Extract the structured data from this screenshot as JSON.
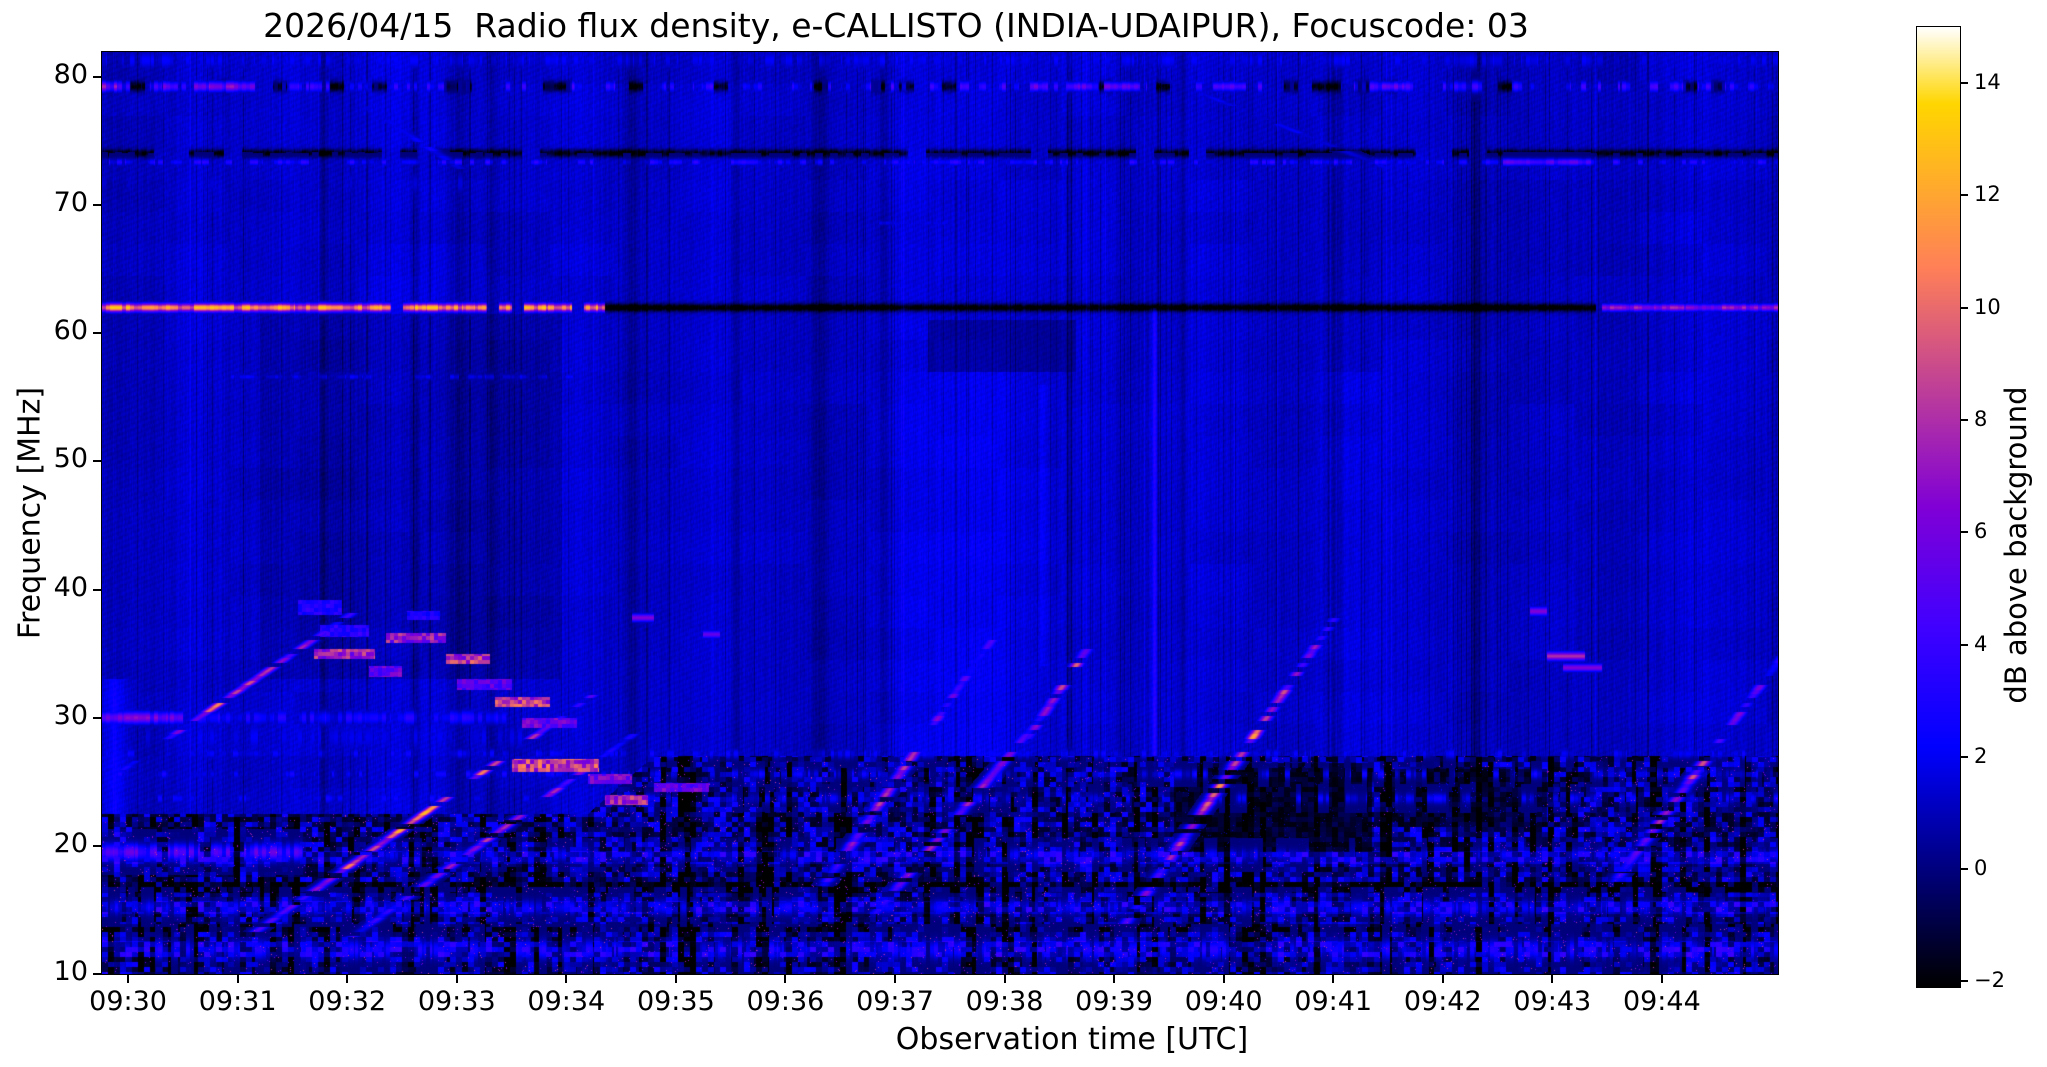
{
  "page": {
    "background": "#ffffff"
  },
  "chart_data": {
    "type": "heatmap",
    "subtype": "solar-radio-spectrogram",
    "title": "2026/04/15  Radio flux density, e-CALLISTO (INDIA-UDAIPUR), Focuscode: 03",
    "xlabel": "Observation time [UTC]",
    "ylabel": "Frequency [MHz]",
    "grid": false,
    "time_range_min": [
      -0.238,
      15.06
    ],
    "freq_range_mhz": [
      10,
      81.95
    ],
    "x_ticks": {
      "minutes": [
        0,
        1,
        2,
        3,
        4,
        5,
        6,
        7,
        8,
        9,
        10,
        11,
        12,
        13,
        14
      ],
      "labels": [
        "09:30",
        "09:31",
        "09:32",
        "09:33",
        "09:34",
        "09:35",
        "09:36",
        "09:37",
        "09:38",
        "09:39",
        "09:40",
        "09:41",
        "09:42",
        "09:43",
        "09:44"
      ]
    },
    "y_ticks": {
      "mhz": [
        80,
        70,
        60,
        50,
        40,
        30,
        20,
        10
      ],
      "labels": [
        "80",
        "70",
        "60",
        "50",
        "40",
        "30",
        "20",
        "10"
      ]
    },
    "colorbar": {
      "label": "dB above background",
      "vmin": -2.1,
      "vmax": 15.0,
      "tick_values": [
        14,
        12,
        10,
        8,
        6,
        4,
        2,
        0,
        -2
      ],
      "tick_labels": [
        "14",
        "12",
        "10",
        "8",
        "6",
        "4",
        "2",
        "0",
        "−2"
      ]
    },
    "colormap": {
      "name": "gnuplot2-like",
      "stops": [
        {
          "p": 0.0,
          "c": "#000000"
        },
        {
          "p": 0.125,
          "c": "#000080"
        },
        {
          "p": 0.25,
          "c": "#0000ff"
        },
        {
          "p": 0.375,
          "c": "#4000ff"
        },
        {
          "p": 0.5,
          "c": "#8000d6"
        },
        {
          "p": 0.625,
          "c": "#bf4096"
        },
        {
          "p": 0.75,
          "c": "#ff8057"
        },
        {
          "p": 0.875,
          "c": "#ffbf17"
        },
        {
          "p": 0.92,
          "c": "#ffd600"
        },
        {
          "p": 0.96,
          "c": "#ffeb80"
        },
        {
          "p": 1.0,
          "c": "#ffffff"
        }
      ]
    },
    "features": {
      "background": {
        "base_db": 1.35,
        "hatch_amp": 0.17,
        "noise_amp": 0.5,
        "col_var": 0.8
      },
      "hbands_format": "[f_mhz, halfwidth_mhz, t0_min, t1_min, value_db, value_var_db, dash_on_prob, seg_min]",
      "hbands": [
        [
          81.3,
          0.9,
          -0.24,
          15.06,
          1.5,
          0.9,
          0.6,
          0.05
        ],
        [
          79.25,
          0.55,
          -0.24,
          15.06,
          2.2,
          2.8,
          0.62,
          0.09
        ],
        [
          79.25,
          0.5,
          -0.24,
          15.06,
          -3.2,
          0.5,
          0.22,
          0.13
        ],
        [
          79.25,
          0.5,
          -0.24,
          1.25,
          5.8,
          2.0,
          0.85,
          0.14
        ],
        [
          79.25,
          0.45,
          8.25,
          9.3,
          5.2,
          1.4,
          0.75,
          0.11
        ],
        [
          79.25,
          0.45,
          9.9,
          10.35,
          4.8,
          1.2,
          0.7,
          0.1
        ],
        [
          79.25,
          0.45,
          11.25,
          11.7,
          5.0,
          1.2,
          0.7,
          0.1
        ],
        [
          74.05,
          0.4,
          -0.24,
          15.06,
          -3.2,
          0.8,
          0.8,
          0.16
        ],
        [
          73.35,
          0.33,
          -0.24,
          15.06,
          2.4,
          1.5,
          0.6,
          0.07
        ],
        [
          73.35,
          0.35,
          12.55,
          13.45,
          4.6,
          1.2,
          0.9,
          0.2
        ],
        [
          71.7,
          1.1,
          -0.24,
          3.25,
          1.0,
          0.7,
          0.55,
          0.06
        ],
        [
          68.6,
          0.25,
          6.85,
          7.55,
          1.5,
          0.5,
          0.9,
          0.25
        ],
        [
          62.0,
          0.42,
          -0.24,
          4.35,
          11.0,
          2.6,
          0.82,
          0.11
        ],
        [
          62.0,
          0.4,
          4.35,
          13.4,
          -4.0,
          0.6,
          1,
          1
        ],
        [
          62.0,
          0.36,
          13.45,
          15.06,
          6.6,
          1.8,
          0.85,
          0.25
        ],
        [
          56.6,
          0.28,
          0.7,
          4.3,
          1.7,
          0.8,
          0.55,
          0.08
        ],
        [
          30.0,
          0.75,
          -0.24,
          3.45,
          2.4,
          1.3,
          0.8,
          0.12
        ],
        [
          30.0,
          0.6,
          -0.24,
          0.5,
          5.6,
          1.6,
          0.9,
          0.2
        ],
        [
          28.5,
          1.5,
          -0.24,
          3.6,
          1.3,
          0.9,
          0.65,
          0.08
        ],
        [
          27.2,
          0.5,
          -0.24,
          15.06,
          1.5,
          1.2,
          0.5,
          0.06
        ],
        [
          25.6,
          0.45,
          -0.24,
          15.06,
          1.5,
          1.5,
          0.42,
          0.05
        ],
        [
          23.7,
          0.5,
          -0.24,
          15.06,
          1.4,
          1.5,
          0.4,
          0.05
        ],
        [
          19.5,
          0.8,
          -0.24,
          1.6,
          4.2,
          2.2,
          0.8,
          0.1
        ],
        [
          19.3,
          0.6,
          1.6,
          15.06,
          1.4,
          1.4,
          0.45,
          0.06
        ],
        [
          15.2,
          0.7,
          -0.24,
          15.06,
          1.6,
          1.4,
          0.5,
          0.06
        ],
        [
          11.9,
          0.9,
          -0.24,
          15.06,
          1.9,
          1.7,
          0.55,
          0.07
        ]
      ],
      "sweeps_format": "[t0_min, f0_mhz, t1_min, f1_mhz, value_db, value_var_db, dash_on_prob, width_min]",
      "sweeps": [
        [
          0.05,
          26.5,
          1.95,
          37.6,
          5.8,
          2.4,
          0.6,
          0.05
        ],
        [
          1.25,
          13.8,
          4.15,
          31.2,
          6.8,
          2.6,
          0.62,
          0.05
        ],
        [
          2.15,
          13.5,
          4.6,
          28.6,
          4.6,
          2.0,
          0.5,
          0.05
        ],
        [
          6.4,
          17.5,
          7.7,
          33.8,
          5.6,
          2.2,
          0.58,
          0.05
        ],
        [
          7.7,
          33.8,
          8.1,
          38.6,
          2.6,
          1.2,
          0.5,
          0.05
        ],
        [
          6.85,
          15.0,
          8.35,
          30.2,
          4.6,
          2.0,
          0.5,
          0.05
        ],
        [
          8.2,
          28.2,
          8.85,
          36.6,
          6.0,
          2.0,
          0.62,
          0.05
        ],
        [
          9.15,
          14.5,
          11.05,
          38.2,
          6.2,
          2.6,
          0.62,
          0.05
        ],
        [
          13.6,
          17.5,
          15.05,
          34.2,
          5.2,
          2.2,
          0.55,
          0.05
        ],
        [
          2.15,
          77.8,
          3.15,
          72.2,
          1.5,
          0.6,
          0.65,
          0.06
        ],
        [
          9.25,
          80.6,
          11.95,
          71.3,
          1.3,
          0.5,
          0.55,
          0.06
        ]
      ],
      "dashes_format": "[t0_min, t1_min, f_mhz, halfwidth_mhz, value_db]",
      "dashes": [
        [
          4.6,
          4.8,
          37.8,
          0.35,
          6.5
        ],
        [
          5.25,
          5.4,
          36.5,
          0.35,
          5.5
        ],
        [
          12.8,
          12.95,
          38.3,
          0.4,
          6.5
        ],
        [
          12.95,
          13.3,
          34.8,
          0.4,
          8.0
        ],
        [
          13.1,
          13.45,
          33.9,
          0.35,
          6.5
        ]
      ],
      "patches_format": "[t0_min, t1_min, f0_mhz, f1_mhz, value_db] (type-II-like drifting patches)",
      "patches": [
        [
          1.55,
          1.95,
          38.0,
          39.2,
          3.2
        ],
        [
          1.75,
          2.2,
          36.3,
          37.2,
          3.5
        ],
        [
          1.7,
          2.25,
          34.6,
          35.4,
          7.5
        ],
        [
          2.2,
          2.5,
          33.2,
          34.0,
          5.5
        ],
        [
          2.35,
          2.9,
          35.8,
          36.6,
          7.0
        ],
        [
          2.55,
          2.85,
          37.6,
          38.3,
          3.0
        ],
        [
          2.9,
          3.3,
          34.2,
          35.0,
          8.0
        ],
        [
          3.0,
          3.5,
          32.2,
          33.0,
          5.0
        ],
        [
          3.35,
          3.85,
          30.8,
          31.6,
          8.5
        ],
        [
          3.6,
          4.1,
          29.2,
          30.0,
          5.5
        ],
        [
          3.5,
          4.3,
          25.8,
          26.8,
          8.5
        ],
        [
          4.2,
          4.6,
          24.8,
          25.6,
          6.0
        ],
        [
          4.35,
          4.75,
          23.2,
          24.0,
          7.5
        ],
        [
          4.8,
          5.3,
          24.2,
          24.9,
          5.5
        ]
      ],
      "dark_zones_format": "[t0_min, t1_min, f0_mhz, f1_mhz, mult, sub_db]",
      "dark_zones": [
        [
          1.2,
          3.95,
          33,
          61.5,
          1,
          0.55
        ],
        [
          9.55,
          11.35,
          19.5,
          26.5,
          0.3,
          1.4
        ],
        [
          11.5,
          12.95,
          21.5,
          26.0,
          0.45,
          1.1
        ],
        [
          7.3,
          8.65,
          57,
          61,
          0.75,
          0.5
        ]
      ],
      "dark_cols_format": "[t_min, width_min]",
      "dark_cols": [
        [
          3.02,
          0.1
        ],
        [
          3.32,
          0.05
        ],
        [
          4.6,
          0.07
        ],
        [
          6.32,
          0.09
        ],
        [
          6.9,
          0.05
        ],
        [
          11.02,
          0.07
        ],
        [
          2.62,
          0.04
        ],
        [
          1.78,
          0.04
        ],
        [
          12.3,
          0.05
        ],
        [
          8.6,
          0.04
        ],
        [
          5.55,
          0.05
        ],
        [
          9.62,
          0.05
        ]
      ],
      "bright_cols_format": "[t_min, width_min, f0_mhz, f1_mhz, add_db]",
      "bright_cols": [
        [
          7.72,
          0.45,
          27,
          57,
          0.5
        ],
        [
          11.22,
          0.28,
          27,
          57,
          0.45
        ],
        [
          9.37,
          0.025,
          10,
          62,
          1.8
        ],
        [
          -0.12,
          0.1,
          10,
          33,
          1.4
        ],
        [
          14.6,
          0.5,
          10,
          20,
          0.5
        ],
        [
          8.35,
          0.03,
          34,
          56,
          0.7
        ]
      ],
      "rfi_mosaic": {
        "f_top_low": 22.5,
        "f_top_high": 27.0,
        "t_switch": 4.2,
        "t_ramp": 0.6,
        "emph_rows": [
          [
            18.6,
            19.6
          ],
          [
            14.7,
            15.7
          ],
          [
            11.3,
            12.6
          ]
        ],
        "dark_rows": [
          [
            16.3,
            17.2
          ],
          [
            13.3,
            13.9
          ]
        ]
      }
    }
  }
}
